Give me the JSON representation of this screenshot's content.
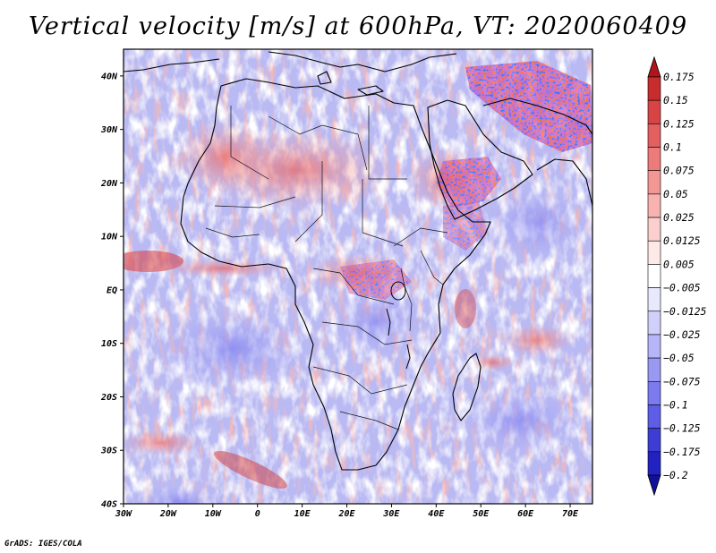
{
  "title": "Vertical velocity [m/s] at 600hPa, VT: 2020060409",
  "credit": "GrADS: IGES/COLA",
  "map": {
    "projection": "lat-lon",
    "lon_range": [
      -30,
      75
    ],
    "lat_range": [
      -40,
      45
    ],
    "lon_ticks": [
      {
        "value": -30,
        "label": "30W"
      },
      {
        "value": -20,
        "label": "20W"
      },
      {
        "value": -10,
        "label": "10W"
      },
      {
        "value": 0,
        "label": "0"
      },
      {
        "value": 10,
        "label": "10E"
      },
      {
        "value": 20,
        "label": "20E"
      },
      {
        "value": 30,
        "label": "30E"
      },
      {
        "value": 40,
        "label": "40E"
      },
      {
        "value": 50,
        "label": "50E"
      },
      {
        "value": 60,
        "label": "60E"
      },
      {
        "value": 70,
        "label": "70E"
      }
    ],
    "lat_ticks": [
      {
        "value": 40,
        "label": "40N"
      },
      {
        "value": 30,
        "label": "30N"
      },
      {
        "value": 20,
        "label": "20N"
      },
      {
        "value": 10,
        "label": "10N"
      },
      {
        "value": 0,
        "label": "EQ"
      },
      {
        "value": -10,
        "label": "10S"
      },
      {
        "value": -20,
        "label": "20S"
      },
      {
        "value": -30,
        "label": "30S"
      },
      {
        "value": -40,
        "label": "40S"
      }
    ]
  },
  "colorbar": {
    "levels": [
      "0.175",
      "0.15",
      "0.125",
      "0.1",
      "0.075",
      "0.05",
      "0.025",
      "0.0125",
      "0.005",
      "−0.005",
      "−0.0125",
      "−0.025",
      "−0.05",
      "−0.075",
      "−0.1",
      "−0.125",
      "−0.175",
      "−0.2"
    ],
    "colors": [
      "#b0151c",
      "#c72c2f",
      "#d84445",
      "#e36060",
      "#ec7b79",
      "#f39795",
      "#f8b3b1",
      "#fbcfcd",
      "#fde9e8",
      "#ffffff",
      "#e9e9fd",
      "#d0d0fb",
      "#b5b5f8",
      "#9999f4",
      "#7b7bef",
      "#5d5de8",
      "#3d3dd6",
      "#2222c2",
      "#10109a"
    ]
  }
}
